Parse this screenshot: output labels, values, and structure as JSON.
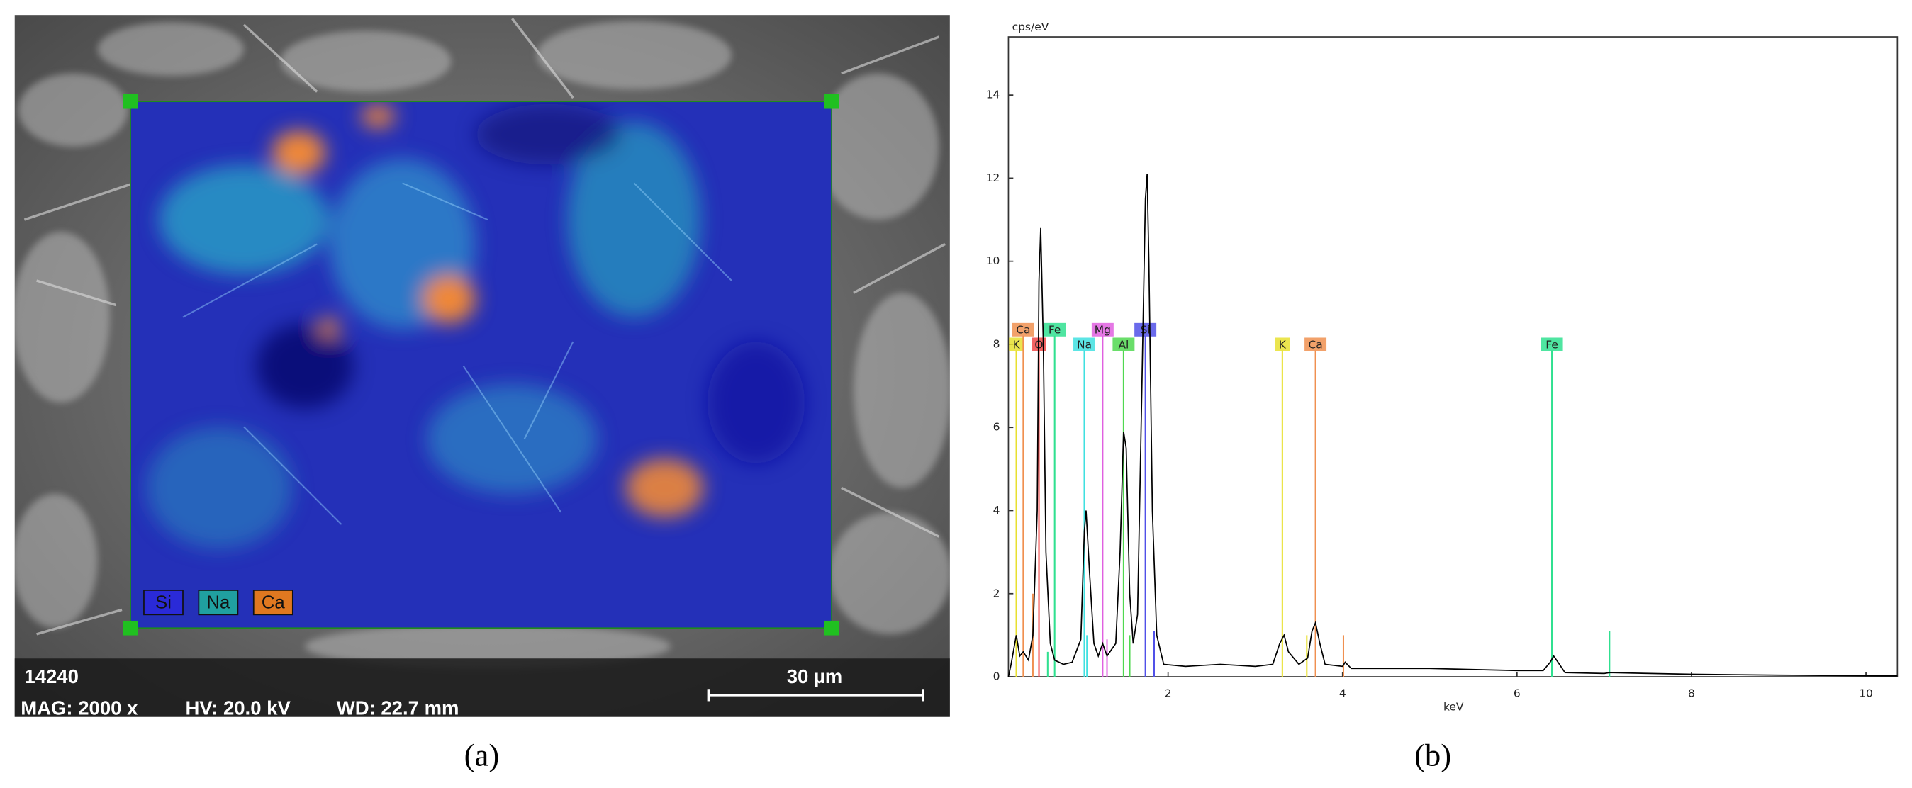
{
  "image_panel": {
    "sample_id": "14240",
    "magnification": "MAG: 2000 x",
    "voltage": "HV: 20.0 kV",
    "working_distance": "WD: 22.7 mm",
    "scale_bar": "30 µm",
    "legend": [
      {
        "label": "Si",
        "color": "#2a2ad8"
      },
      {
        "label": "Na",
        "color": "#20a0a0"
      },
      {
        "label": "Ca",
        "color": "#e07820"
      }
    ]
  },
  "panel_labels": [
    "(a)",
    "(b)"
  ],
  "chart_data": {
    "type": "line",
    "y_label": "cps/eV",
    "x_label": "keV",
    "xlim": [
      0.17,
      10.36
    ],
    "ylim": [
      0,
      15.4
    ],
    "xticks": [
      2,
      4,
      6,
      8,
      10
    ],
    "yticks": [
      0,
      2,
      4,
      6,
      8,
      10,
      12,
      14
    ],
    "series": [
      {
        "color": "#000000",
        "x": [
          0.17,
          0.2,
          0.26,
          0.3,
          0.34,
          0.4,
          0.45,
          0.5,
          0.52,
          0.54,
          0.57,
          0.6,
          0.65,
          0.7,
          0.8,
          0.9,
          1.0,
          1.04,
          1.06,
          1.1,
          1.15,
          1.2,
          1.25,
          1.3,
          1.4,
          1.45,
          1.49,
          1.52,
          1.56,
          1.6,
          1.65,
          1.7,
          1.74,
          1.76,
          1.78,
          1.82,
          1.87,
          1.95,
          2.2,
          2.6,
          3.0,
          3.2,
          3.28,
          3.33,
          3.38,
          3.5,
          3.6,
          3.65,
          3.69,
          3.74,
          3.8,
          4.0,
          4.03,
          4.1,
          5.0,
          6.0,
          6.3,
          6.38,
          6.42,
          6.47,
          6.55,
          7.0,
          7.06,
          8.0,
          9.0,
          10.36
        ],
        "values": [
          0,
          0.3,
          1.0,
          0.5,
          0.6,
          0.4,
          1.0,
          4,
          9.5,
          10.8,
          8,
          3,
          0.8,
          0.4,
          0.3,
          0.35,
          0.9,
          3.5,
          4.0,
          2.5,
          0.8,
          0.5,
          0.8,
          0.5,
          0.8,
          3,
          5.9,
          5.5,
          2,
          0.8,
          1.5,
          7,
          11.5,
          12.1,
          10,
          4,
          1,
          0.3,
          0.25,
          0.3,
          0.25,
          0.3,
          0.8,
          1.0,
          0.6,
          0.3,
          0.45,
          1.1,
          1.3,
          0.8,
          0.3,
          0.25,
          0.35,
          0.2,
          0.2,
          0.15,
          0.15,
          0.35,
          0.5,
          0.35,
          0.1,
          0.08,
          0.1,
          0.06,
          0.04,
          0.02
        ]
      }
    ],
    "element_lines": [
      {
        "label": "K",
        "x": 0.26,
        "color": "#e8e030"
      },
      {
        "label": "Ca",
        "x": 0.34,
        "color": "#f09050"
      },
      {
        "label": "O",
        "x": 0.52,
        "color": "#f04848"
      },
      {
        "label": "Fe",
        "x": 0.7,
        "color": "#30e090"
      },
      {
        "label": "Na",
        "x": 1.04,
        "color": "#40e0e0"
      },
      {
        "label": "Mg",
        "x": 1.25,
        "color": "#e060e0"
      },
      {
        "label": "Al",
        "x": 1.49,
        "color": "#50d850"
      },
      {
        "label": "Si",
        "x": 1.74,
        "color": "#5050e8"
      },
      {
        "label": "K",
        "x": 3.31,
        "color": "#e8e030"
      },
      {
        "label": "Ca",
        "x": 3.69,
        "color": "#f09050"
      },
      {
        "label": "Fe",
        "x": 6.4,
        "color": "#30e090"
      }
    ],
    "minor_lines": [
      {
        "x": 0.45,
        "height": 2.0,
        "color": "#f09050"
      },
      {
        "x": 0.62,
        "height": 0.6,
        "color": "#30e090"
      },
      {
        "x": 1.07,
        "height": 1.0,
        "color": "#40e0e0"
      },
      {
        "x": 1.3,
        "height": 0.9,
        "color": "#e060e0"
      },
      {
        "x": 1.56,
        "height": 1.0,
        "color": "#50d850"
      },
      {
        "x": 1.84,
        "height": 1.1,
        "color": "#5050e8"
      },
      {
        "x": 3.59,
        "height": 1.0,
        "color": "#e8e030"
      },
      {
        "x": 4.01,
        "height": 1.0,
        "color": "#f09050"
      },
      {
        "x": 6.4,
        "height": 3.9,
        "color": "#30e090"
      },
      {
        "x": 7.06,
        "height": 1.1,
        "color": "#30e090"
      }
    ]
  }
}
